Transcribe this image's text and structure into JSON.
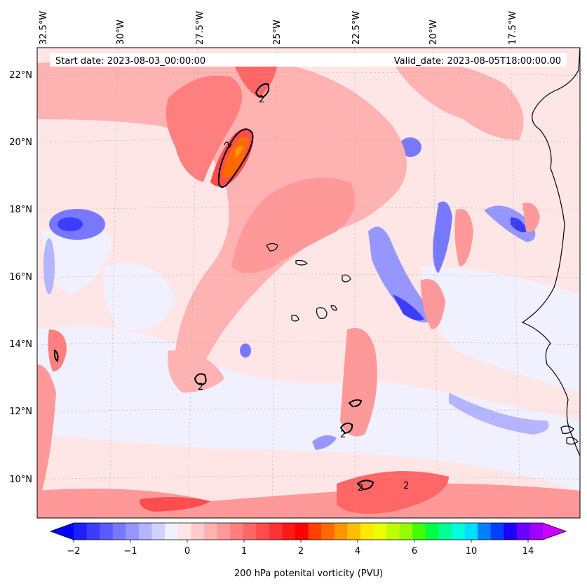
{
  "header": {
    "start_date": "Start date: 2023-08-03_00:00:00",
    "valid_date": "Valid_date: 2023-08-05T18:00:00.00"
  },
  "lon_ticks": [
    "32.5°W",
    "30°W",
    "27.5°W",
    "25°W",
    "22.5°W",
    "20°W",
    "17.5°W"
  ],
  "lat_ticks": [
    "22°N",
    "20°N",
    "18°N",
    "16°N",
    "14°N",
    "12°N",
    "10°N"
  ],
  "colorbar": {
    "label": "200 hPa potenital vorticity (PVU)",
    "tick_labels": [
      "−2",
      "−1",
      "0",
      "1",
      "2",
      "4",
      "6",
      "10",
      "14"
    ],
    "colors": [
      "#0000ff",
      "#1e1eff",
      "#3c3cff",
      "#5a5aff",
      "#7878ff",
      "#9696ff",
      "#b4b4ff",
      "#d2d2ff",
      "#f0f0ff",
      "#ffe6e6",
      "#ffcccc",
      "#ffb2b2",
      "#ff9999",
      "#ff7f7f",
      "#ff6666",
      "#ff4c4c",
      "#ff3333",
      "#ff1919",
      "#ff0000",
      "#ff4000",
      "#ff6a00",
      "#ff9500",
      "#ffbf00",
      "#ffea00",
      "#eaff00",
      "#bfff00",
      "#95ff00",
      "#40ff00",
      "#00ff40",
      "#00ff95",
      "#00ffdf",
      "#00dfff",
      "#0080ff",
      "#0040ff",
      "#1e00ff",
      "#6a00ff",
      "#a000ff",
      "#cc00ff"
    ]
  },
  "contour_labels": [
    "2",
    "2",
    "2",
    "2",
    "2",
    "2"
  ]
}
